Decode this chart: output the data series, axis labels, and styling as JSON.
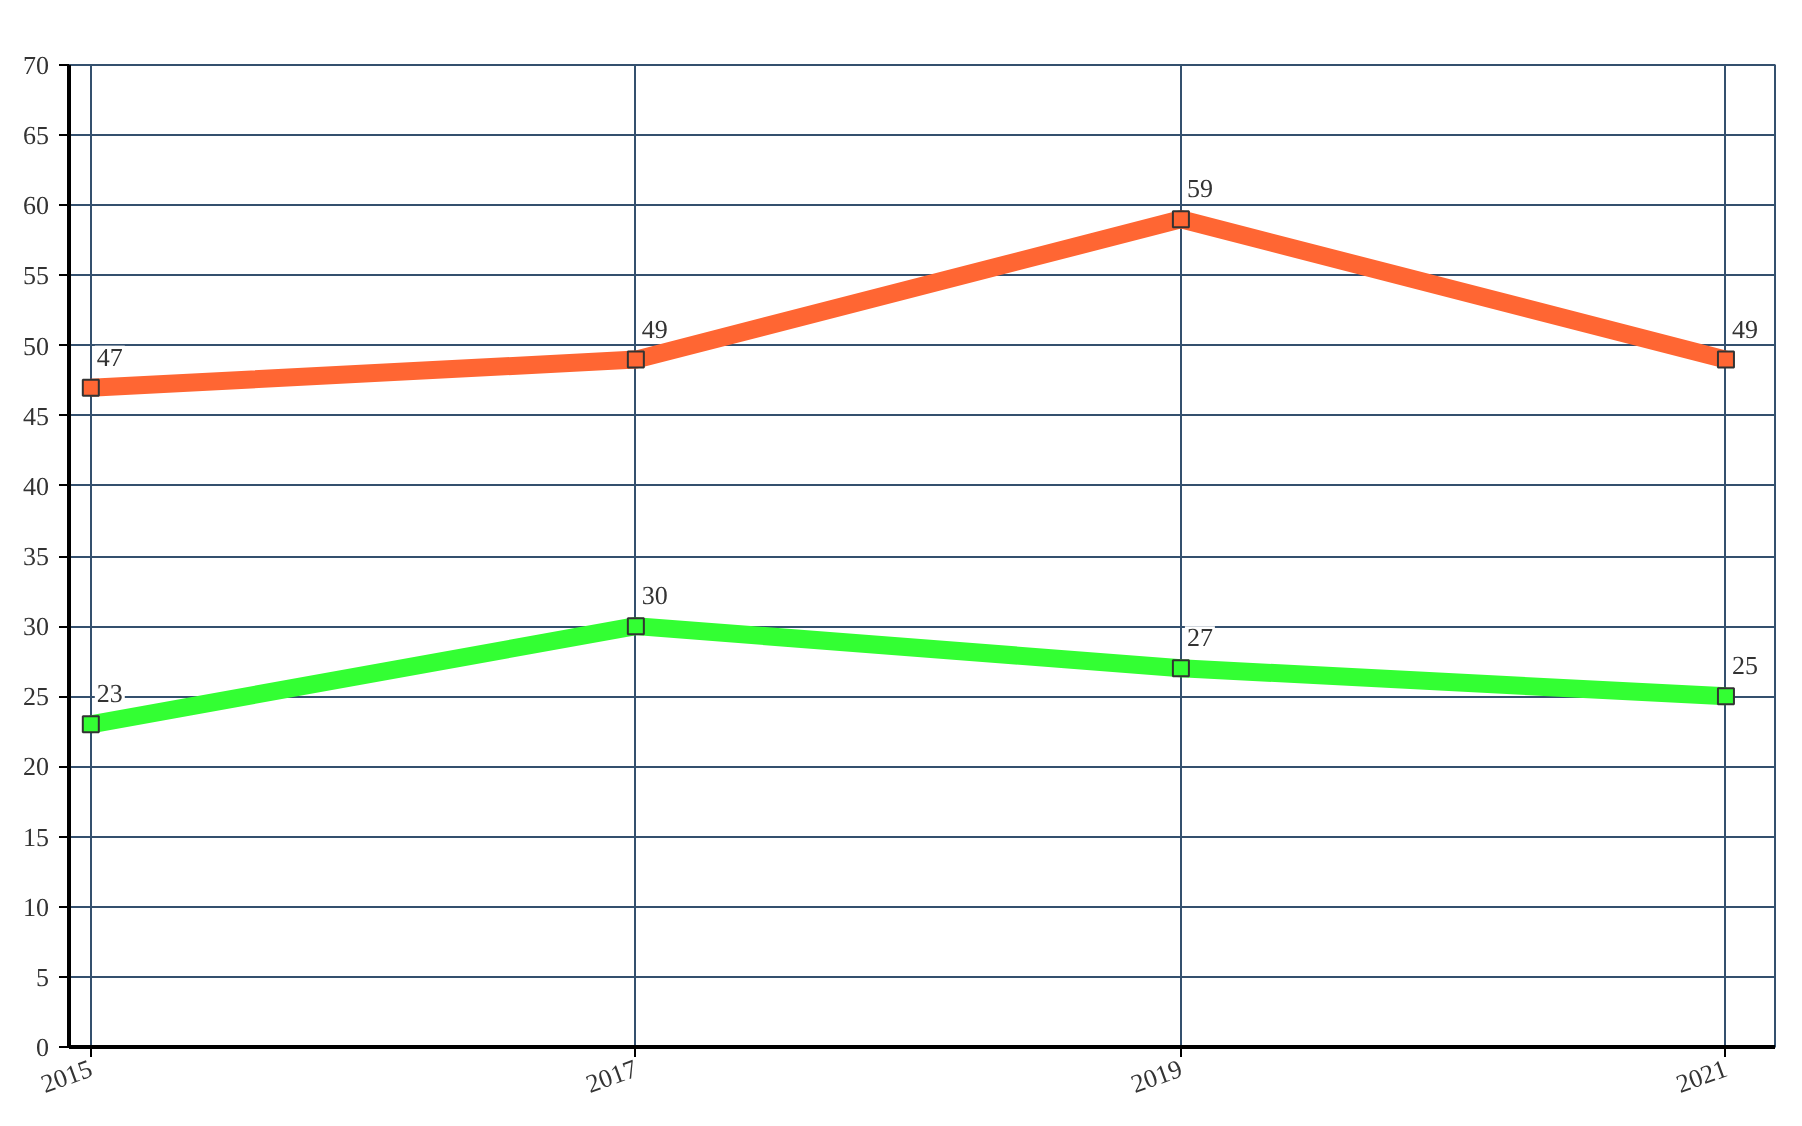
{
  "chart_data": {
    "type": "line",
    "categories": [
      "2015",
      "2017",
      "2019",
      "2021"
    ],
    "series": [
      {
        "color": "#ff6633",
        "values": [
          47,
          49,
          59,
          49
        ]
      },
      {
        "color": "#33ff33",
        "values": [
          23,
          30,
          27,
          25
        ]
      }
    ],
    "ylim": [
      0,
      70
    ],
    "yticks": [
      0,
      5,
      10,
      15,
      20,
      25,
      30,
      35,
      40,
      45,
      50,
      55,
      60,
      65,
      70
    ],
    "grid": true,
    "marker": "square",
    "data_labels": true
  }
}
